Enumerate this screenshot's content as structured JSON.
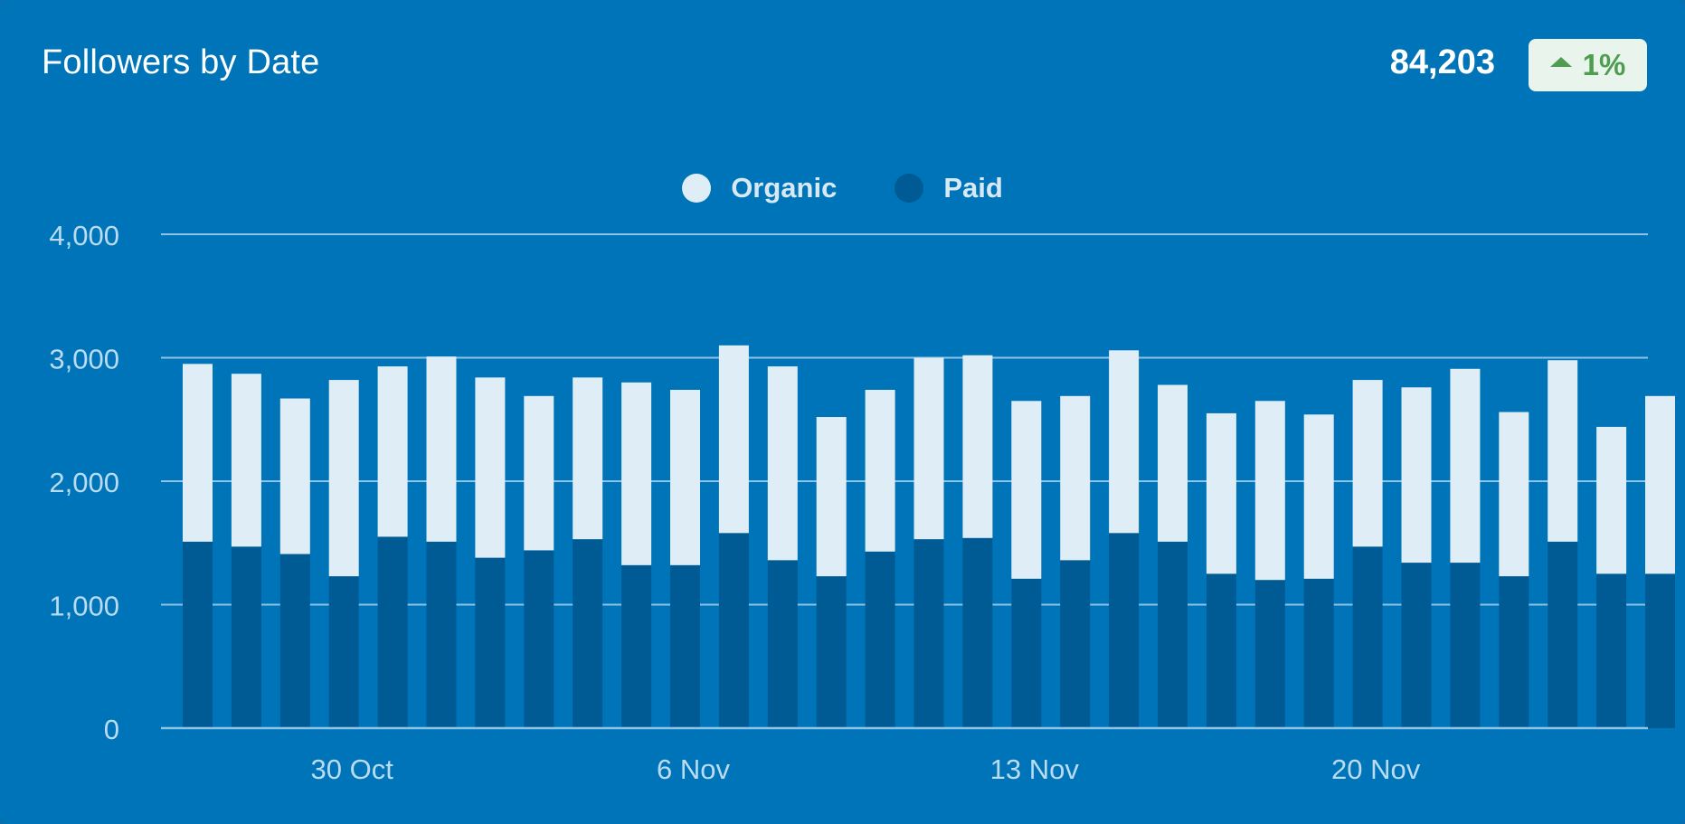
{
  "card": {
    "title": "Followers by Date",
    "total": "84,203",
    "change": "1%",
    "change_icon": "triangle-up-icon"
  },
  "colors": {
    "background": "#0074b8",
    "organic": "#deedf6",
    "paid": "#005a94",
    "gridline": "#8cc3e6",
    "axis_text": "#b9dcf2",
    "badge_bg": "#e8f4ec",
    "badge_text": "#4f9d4f"
  },
  "chart_data": {
    "type": "bar",
    "stacked": true,
    "legend_position": "top-center",
    "grid": true,
    "ylim": [
      0,
      4000
    ],
    "yticks": [
      0,
      1000,
      2000,
      3000,
      4000
    ],
    "ytick_labels": [
      "0",
      "1,000",
      "2,000",
      "3,000",
      "4,000"
    ],
    "x_dates": [
      "27 Oct",
      "28 Oct",
      "29 Oct",
      "30 Oct",
      "31 Oct",
      "1 Nov",
      "2 Nov",
      "3 Nov",
      "4 Nov",
      "5 Nov",
      "6 Nov",
      "7 Nov",
      "8 Nov",
      "9 Nov",
      "10 Nov",
      "11 Nov",
      "12 Nov",
      "13 Nov",
      "14 Nov",
      "15 Nov",
      "16 Nov",
      "17 Nov",
      "18 Nov",
      "19 Nov",
      "20 Nov",
      "21 Nov",
      "22 Nov",
      "23 Nov",
      "24 Nov",
      "25 Nov",
      "26 Nov"
    ],
    "xtick_labels": [
      "30 Oct",
      "6 Nov",
      "13 Nov",
      "20 Nov"
    ],
    "xtick_dates": [
      "30 Oct",
      "6 Nov",
      "13 Nov",
      "20 Nov"
    ],
    "series": [
      {
        "name": "Organic",
        "values": [
          1440,
          1400,
          1260,
          1590,
          1380,
          1500,
          1460,
          1250,
          1310,
          1480,
          1420,
          1520,
          1570,
          1290,
          1310,
          1470,
          1480,
          1440,
          1330,
          1480,
          1270,
          1300,
          1450,
          1330,
          1350,
          1420,
          1570,
          1330,
          1470,
          1190,
          1440
        ]
      },
      {
        "name": "Paid",
        "values": [
          1510,
          1470,
          1410,
          1230,
          1550,
          1510,
          1380,
          1440,
          1530,
          1320,
          1320,
          1580,
          1360,
          1230,
          1430,
          1530,
          1540,
          1210,
          1360,
          1580,
          1510,
          1250,
          1200,
          1210,
          1470,
          1340,
          1340,
          1230,
          1510,
          1250,
          1250
        ]
      }
    ]
  }
}
